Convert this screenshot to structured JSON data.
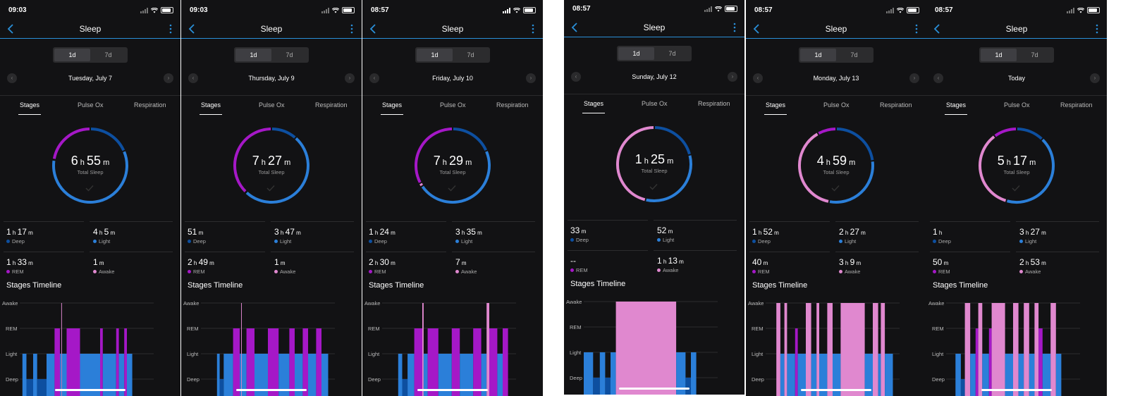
{
  "colors": {
    "deep": "#0d4fa0",
    "light": "#2b7fd9",
    "rem": "#a518c7",
    "awake": "#e088cf",
    "accent": "#2a8fd8"
  },
  "common": {
    "title": "Sleep",
    "seg_1d": "1d",
    "seg_7d": "7d",
    "tabs": [
      "Stages",
      "Pulse Ox",
      "Respiration"
    ],
    "total_label": "Total Sleep",
    "stage_labels": [
      "Deep",
      "Light",
      "REM",
      "Awake"
    ],
    "timeline_title": "Stages Timeline",
    "axis": [
      "Awake",
      "REM",
      "Light",
      "Deep"
    ]
  },
  "screens": [
    {
      "time": "09:03",
      "date": "Tuesday, July 7",
      "total": {
        "h": "6",
        "m": "55"
      },
      "deep": {
        "h": "1",
        "m": "17"
      },
      "light": {
        "h": "4",
        "m": "5"
      },
      "rem": {
        "h": "1",
        "m": "33"
      },
      "awake": {
        "h": "",
        "m": "1"
      },
      "minutes": {
        "deep": 77,
        "light": 245,
        "rem": 93,
        "awake": 1
      },
      "timeline": [
        [
          0.02,
          0.05,
          "L"
        ],
        [
          0.05,
          0.1,
          "D"
        ],
        [
          0.1,
          0.13,
          "L"
        ],
        [
          0.13,
          0.2,
          "D"
        ],
        [
          0.2,
          0.26,
          "L"
        ],
        [
          0.26,
          0.3,
          "R"
        ],
        [
          0.3,
          0.31,
          "L"
        ],
        [
          0.31,
          0.315,
          "A"
        ],
        [
          0.315,
          0.35,
          "L"
        ],
        [
          0.35,
          0.45,
          "R"
        ],
        [
          0.45,
          0.6,
          "L"
        ],
        [
          0.6,
          0.62,
          "R"
        ],
        [
          0.62,
          0.72,
          "L"
        ],
        [
          0.72,
          0.74,
          "R"
        ],
        [
          0.74,
          0.78,
          "L"
        ],
        [
          0.78,
          0.8,
          "R"
        ],
        [
          0.8,
          0.84,
          "L"
        ]
      ]
    },
    {
      "time": "09:03",
      "date": "Thursday, July 9",
      "total": {
        "h": "7",
        "m": "27"
      },
      "deep": {
        "h": "",
        "m": "51"
      },
      "light": {
        "h": "3",
        "m": "47"
      },
      "rem": {
        "h": "2",
        "m": "49"
      },
      "awake": {
        "h": "",
        "m": "1"
      },
      "minutes": {
        "deep": 51,
        "light": 227,
        "rem": 169,
        "awake": 1
      },
      "timeline": [
        [
          0.12,
          0.14,
          "L"
        ],
        [
          0.14,
          0.17,
          "D"
        ],
        [
          0.17,
          0.24,
          "L"
        ],
        [
          0.24,
          0.29,
          "R"
        ],
        [
          0.29,
          0.3,
          "L"
        ],
        [
          0.3,
          0.305,
          "A"
        ],
        [
          0.305,
          0.34,
          "L"
        ],
        [
          0.34,
          0.4,
          "R"
        ],
        [
          0.4,
          0.5,
          "L"
        ],
        [
          0.5,
          0.58,
          "R"
        ],
        [
          0.58,
          0.66,
          "L"
        ],
        [
          0.66,
          0.7,
          "R"
        ],
        [
          0.7,
          0.76,
          "L"
        ],
        [
          0.76,
          0.8,
          "R"
        ],
        [
          0.8,
          0.86,
          "L"
        ],
        [
          0.86,
          0.9,
          "R"
        ],
        [
          0.9,
          0.95,
          "L"
        ]
      ]
    },
    {
      "time": "08:57",
      "date": "Friday, July 10",
      "total": {
        "h": "7",
        "m": "29"
      },
      "deep": {
        "h": "1",
        "m": "24"
      },
      "light": {
        "h": "3",
        "m": "35"
      },
      "rem": {
        "h": "2",
        "m": "30"
      },
      "awake": {
        "h": "",
        "m": "7"
      },
      "minutes": {
        "deep": 84,
        "light": 215,
        "rem": 150,
        "awake": 7
      },
      "timeline": [
        [
          0.12,
          0.15,
          "L"
        ],
        [
          0.15,
          0.19,
          "D"
        ],
        [
          0.19,
          0.24,
          "L"
        ],
        [
          0.24,
          0.3,
          "R"
        ],
        [
          0.3,
          0.31,
          "A"
        ],
        [
          0.31,
          0.34,
          "L"
        ],
        [
          0.34,
          0.42,
          "R"
        ],
        [
          0.42,
          0.52,
          "L"
        ],
        [
          0.52,
          0.58,
          "R"
        ],
        [
          0.58,
          0.68,
          "L"
        ],
        [
          0.68,
          0.74,
          "R"
        ],
        [
          0.74,
          0.78,
          "L"
        ],
        [
          0.78,
          0.8,
          "A"
        ],
        [
          0.8,
          0.86,
          "R"
        ],
        [
          0.86,
          0.9,
          "L"
        ],
        [
          0.9,
          0.94,
          "R"
        ]
      ]
    },
    {
      "time": "08:57",
      "date": "Sunday, July 12",
      "total": {
        "h": "1",
        "m": "25"
      },
      "deep": {
        "h": "",
        "m": "33"
      },
      "light": {
        "h": "",
        "m": "52"
      },
      "rem": {
        "h": "",
        "m": "--"
      },
      "awake": {
        "h": "1",
        "m": "13"
      },
      "minutes": {
        "deep": 33,
        "light": 52,
        "rem": 0,
        "awake": 73
      },
      "timeline": [
        [
          0.0,
          0.07,
          "L"
        ],
        [
          0.07,
          0.12,
          "D"
        ],
        [
          0.12,
          0.16,
          "L"
        ],
        [
          0.16,
          0.2,
          "D"
        ],
        [
          0.2,
          0.24,
          "L"
        ],
        [
          0.24,
          0.69,
          "A"
        ],
        [
          0.69,
          0.76,
          "L"
        ],
        [
          0.76,
          0.8,
          "D"
        ],
        [
          0.8,
          0.84,
          "L"
        ]
      ]
    },
    {
      "time": "08:57",
      "date": "Monday, July 13",
      "total": {
        "h": "4",
        "m": "59"
      },
      "deep": {
        "h": "1",
        "m": "52"
      },
      "light": {
        "h": "2",
        "m": "27"
      },
      "rem": {
        "h": "",
        "m": "40"
      },
      "awake": {
        "h": "3",
        "m": "9"
      },
      "minutes": {
        "deep": 112,
        "light": 147,
        "rem": 40,
        "awake": 189
      },
      "timeline": [
        [
          0.08,
          0.11,
          "A"
        ],
        [
          0.11,
          0.14,
          "L"
        ],
        [
          0.14,
          0.16,
          "A"
        ],
        [
          0.16,
          0.22,
          "L"
        ],
        [
          0.22,
          0.24,
          "R"
        ],
        [
          0.24,
          0.3,
          "L"
        ],
        [
          0.3,
          0.34,
          "A"
        ],
        [
          0.34,
          0.38,
          "L"
        ],
        [
          0.38,
          0.4,
          "A"
        ],
        [
          0.4,
          0.46,
          "L"
        ],
        [
          0.46,
          0.5,
          "A"
        ],
        [
          0.5,
          0.56,
          "L"
        ],
        [
          0.56,
          0.74,
          "A"
        ],
        [
          0.74,
          0.8,
          "L"
        ],
        [
          0.8,
          0.84,
          "A"
        ],
        [
          0.84,
          0.86,
          "L"
        ],
        [
          0.86,
          0.89,
          "A"
        ],
        [
          0.89,
          0.95,
          "L"
        ]
      ]
    },
    {
      "time": "08:57",
      "date": "Today",
      "total": {
        "h": "5",
        "m": "17"
      },
      "deep": {
        "h": "1",
        "m": ""
      },
      "light": {
        "h": "3",
        "m": "27"
      },
      "rem": {
        "h": "",
        "m": "50"
      },
      "awake": {
        "h": "2",
        "m": "53"
      },
      "minutes": {
        "deep": 60,
        "light": 207,
        "rem": 50,
        "awake": 173
      },
      "timeline": [
        [
          0.07,
          0.11,
          "L"
        ],
        [
          0.11,
          0.14,
          "D"
        ],
        [
          0.14,
          0.18,
          "A"
        ],
        [
          0.18,
          0.22,
          "L"
        ],
        [
          0.22,
          0.24,
          "R"
        ],
        [
          0.24,
          0.27,
          "A"
        ],
        [
          0.27,
          0.32,
          "L"
        ],
        [
          0.32,
          0.34,
          "R"
        ],
        [
          0.34,
          0.44,
          "A"
        ],
        [
          0.44,
          0.5,
          "L"
        ],
        [
          0.5,
          0.54,
          "A"
        ],
        [
          0.54,
          0.58,
          "L"
        ],
        [
          0.58,
          0.62,
          "A"
        ],
        [
          0.62,
          0.66,
          "L"
        ],
        [
          0.66,
          0.69,
          "A"
        ],
        [
          0.69,
          0.72,
          "R"
        ],
        [
          0.72,
          0.78,
          "L"
        ],
        [
          0.78,
          0.82,
          "A"
        ],
        [
          0.82,
          0.86,
          "L"
        ]
      ]
    }
  ]
}
